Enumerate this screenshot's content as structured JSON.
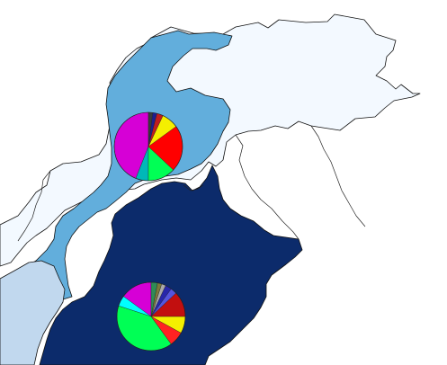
{
  "map": {
    "type": "choropleth-with-pie-charts",
    "colors": {
      "background": "#ffffff",
      "north_outer_region": "#f3f9ff",
      "northwest_region": "#62aedc",
      "southwest_region": "#c1d8ee",
      "east_region": "#0c2b6b",
      "outline": "#111111"
    },
    "labels_shown": false
  },
  "chart_data": [
    {
      "type": "pie",
      "id": "northwest-pie",
      "region": "northwest_region",
      "labels_shown": false,
      "slices": [
        {
          "color": "#d600d6",
          "value": 44
        },
        {
          "color": "#00b8b8",
          "value": 6
        },
        {
          "color": "#00ff55",
          "value": 13
        },
        {
          "color": "#ff0000",
          "value": 22
        },
        {
          "color": "#f4ef00",
          "value": 8
        },
        {
          "color": "#bf1d1d",
          "value": 3
        },
        {
          "color": "#1d1d8f",
          "value": 2
        },
        {
          "color": "#3a3a3a",
          "value": 2
        }
      ]
    },
    {
      "type": "pie",
      "id": "east-pie",
      "region": "east_region",
      "labels_shown": false,
      "slices": [
        {
          "color": "#d600d6",
          "value": 15
        },
        {
          "color": "#00ffff",
          "value": 5
        },
        {
          "color": "#00ff55",
          "value": 40
        },
        {
          "color": "#ff2222",
          "value": 7
        },
        {
          "color": "#f4ef00",
          "value": 8
        },
        {
          "color": "#c20f0f",
          "value": 12
        },
        {
          "color": "#5555dd",
          "value": 3
        },
        {
          "color": "#2727aa",
          "value": 3
        },
        {
          "color": "#aaaaaa",
          "value": 2
        },
        {
          "color": "#7a7a3a",
          "value": 2
        },
        {
          "color": "#2e8b57",
          "value": 3
        }
      ]
    }
  ]
}
